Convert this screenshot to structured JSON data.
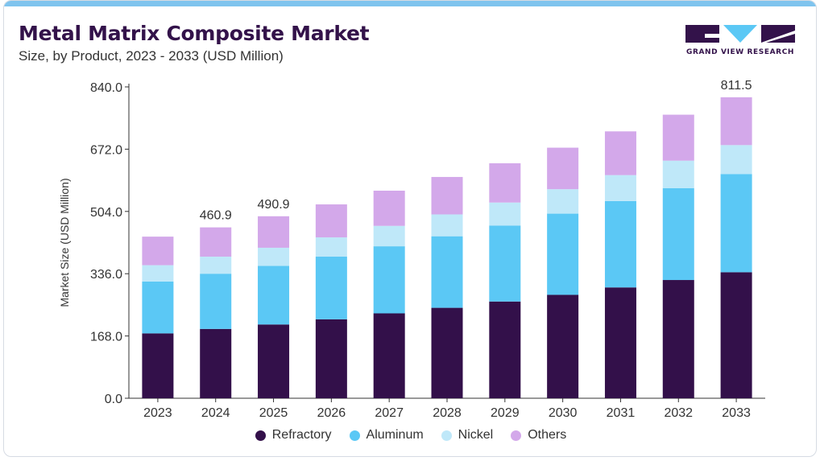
{
  "header": {
    "title": "Metal Matrix Composite Market",
    "subtitle": "Size, by Product, 2023 - 2033 (USD Million)"
  },
  "logo": {
    "text": "GRAND VIEW RESEARCH",
    "icon": "gvr-logo-icon"
  },
  "chart_data": {
    "type": "bar",
    "stacked": true,
    "title": "Metal Matrix Composite Market",
    "subtitle": "Size, by Product, 2023 - 2033 (USD Million)",
    "xlabel": "",
    "ylabel": "Market Size (USD Million)",
    "ylim": [
      0,
      840
    ],
    "yticks": [
      0,
      168,
      336,
      504,
      672,
      840
    ],
    "ytick_labels": [
      "0.0",
      "168.0",
      "336.0",
      "504.0",
      "672.0",
      "840.0"
    ],
    "categories": [
      "2023",
      "2024",
      "2025",
      "2026",
      "2027",
      "2028",
      "2029",
      "2030",
      "2031",
      "2032",
      "2033"
    ],
    "series": [
      {
        "name": "Refractory",
        "color": "#33104a",
        "values": [
          175,
          187,
          199,
          213,
          229,
          244,
          261,
          279,
          299,
          319,
          340
        ]
      },
      {
        "name": "Aluminum",
        "color": "#5bc8f5",
        "values": [
          140,
          149,
          158,
          169,
          181,
          193,
          205,
          219,
          233,
          248,
          265
        ]
      },
      {
        "name": "Nickel",
        "color": "#bfe8f9",
        "values": [
          44,
          46,
          49,
          52,
          55,
          59,
          62,
          66,
          70,
          74,
          78
        ]
      },
      {
        "name": "Others",
        "color": "#d3a8ea",
        "values": [
          77,
          79,
          85,
          89,
          95,
          101,
          106,
          112,
          118,
          124,
          129
        ]
      }
    ],
    "data_labels": [
      {
        "category": "2024",
        "label": "460.9"
      },
      {
        "category": "2025",
        "label": "490.9"
      },
      {
        "category": "2033",
        "label": "811.5"
      }
    ],
    "grid": false,
    "legend_position": "bottom"
  }
}
